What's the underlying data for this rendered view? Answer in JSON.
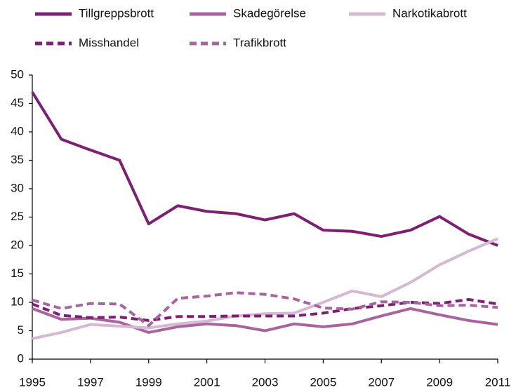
{
  "chart_data": {
    "type": "line",
    "x": [
      1995,
      1996,
      1997,
      1998,
      1999,
      2000,
      2001,
      2002,
      2003,
      2004,
      2005,
      2006,
      2007,
      2008,
      2009,
      2010,
      2011
    ],
    "series": [
      {
        "name": "Tillgreppsbrott",
        "color": "#7d1f72",
        "dashed": false,
        "values": [
          47,
          38.7,
          36.8,
          35,
          23.8,
          27,
          26,
          25.6,
          24.5,
          25.6,
          22.7,
          22.5,
          21.6,
          22.7,
          25.1,
          22,
          20
        ]
      },
      {
        "name": "Skadegörelse",
        "color": "#a8649e",
        "dashed": false,
        "values": [
          8.9,
          7,
          7.2,
          6.5,
          4.7,
          5.7,
          6.2,
          5.9,
          5,
          6.2,
          5.7,
          6.2,
          7.6,
          8.9,
          7.8,
          6.8,
          6.1
        ]
      },
      {
        "name": "Narkotikabrott",
        "color": "#d5b8d1",
        "dashed": false,
        "values": [
          3.6,
          4.7,
          6.1,
          5.8,
          5.5,
          6.2,
          6.7,
          7.6,
          8,
          8.1,
          10,
          12,
          11,
          13.5,
          16.6,
          19,
          21.2
        ]
      },
      {
        "name": "Misshandel",
        "color": "#7d1f72",
        "dashed": true,
        "values": [
          9.7,
          7.7,
          7.3,
          7.4,
          6.8,
          7.5,
          7.5,
          7.6,
          7.6,
          7.6,
          8.1,
          8.9,
          9.4,
          10,
          9.8,
          10.5,
          9.7
        ]
      },
      {
        "name": "Trafikbrott",
        "color": "#a8649e",
        "dashed": true,
        "values": [
          10.4,
          8.9,
          9.8,
          9.7,
          5.9,
          10.7,
          11.1,
          11.7,
          11.4,
          10.6,
          9,
          8.8,
          10.1,
          10,
          9.4,
          9.5,
          9.1
        ]
      }
    ],
    "xlim": [
      1995,
      2011
    ],
    "xticks": [
      1995,
      1997,
      1999,
      2001,
      2003,
      2005,
      2007,
      2009,
      2011
    ],
    "ylim": [
      0,
      50
    ],
    "yticks": [
      0,
      5,
      10,
      15,
      20,
      25,
      30,
      35,
      40,
      45,
      50
    ],
    "grid": false
  }
}
